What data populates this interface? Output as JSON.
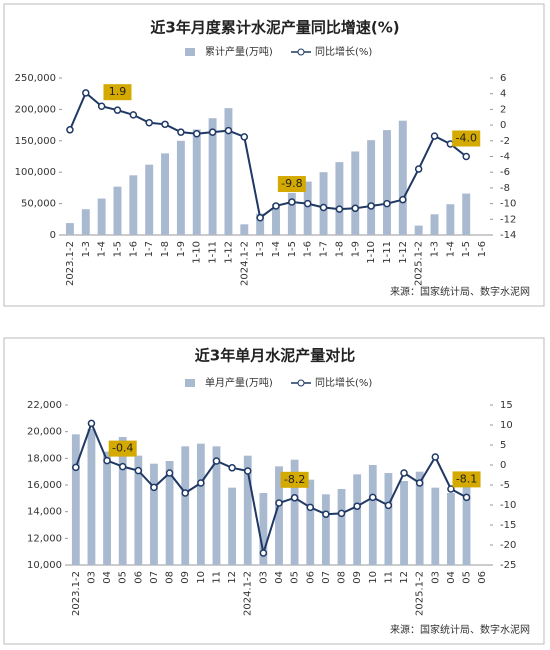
{
  "chart_data": [
    {
      "type": "combo",
      "title": "近3年月度累计水泥产量同比增速(%)",
      "source": "来源：国家统计局、数字水泥网",
      "categories": [
        "2023.1-2",
        "1-3",
        "1-4",
        "1-5",
        "1-6",
        "1-7",
        "1-8",
        "1-9",
        "1-10",
        "1-11",
        "1-12",
        "2024.1-2",
        "1-3",
        "1-4",
        "1-5",
        "1-6",
        "1-7",
        "1-8",
        "1-9",
        "1-10",
        "1-11",
        "1-12",
        "2025.1-2",
        "1-3",
        "1-4",
        "1-5",
        "1-6"
      ],
      "series": [
        {
          "name": "累计产量(万吨)",
          "type": "bar",
          "color": "#a9b9d0",
          "values": [
            19000,
            41000,
            58000,
            77000,
            95000,
            112000,
            130000,
            150000,
            168000,
            186000,
            202000,
            17000,
            34000,
            49000,
            67000,
            85000,
            100000,
            116000,
            133000,
            151000,
            167000,
            182000,
            15000,
            33000,
            49000,
            66000,
            null
          ]
        },
        {
          "name": "同比增长(%)",
          "type": "line",
          "axis": "y2",
          "color": "#1f3864",
          "values": [
            -0.6,
            4.1,
            2.4,
            1.9,
            1.3,
            0.3,
            0.1,
            -0.9,
            -1.1,
            -0.9,
            -0.7,
            -1.5,
            -11.8,
            -10.3,
            -9.8,
            -10.0,
            -10.5,
            -10.7,
            -10.6,
            -10.3,
            -10.0,
            -9.5,
            -5.6,
            -1.4,
            -2.4,
            -4.0,
            null
          ],
          "value_labels": [
            null,
            null,
            null,
            "1.9",
            null,
            null,
            null,
            null,
            null,
            null,
            null,
            null,
            null,
            null,
            "-9.8",
            null,
            null,
            null,
            null,
            null,
            null,
            null,
            null,
            null,
            null,
            "-4.0",
            null
          ]
        }
      ],
      "ylim": [
        0,
        250000
      ],
      "yticks": [
        0,
        {
          "value": 50000,
          "label": "50,000"
        },
        {
          "value": 100000,
          "label": "100,000"
        },
        {
          "value": 150000,
          "label": "150,000"
        },
        {
          "value": 200000,
          "label": "200,000"
        },
        {
          "value": 250000,
          "label": "250,000"
        }
      ],
      "y2lim": [
        -14,
        6
      ],
      "y2ticks": [
        -14,
        -12,
        -10,
        -8,
        -6,
        -4,
        -2,
        0,
        2,
        4,
        6
      ]
    },
    {
      "type": "combo",
      "title": "近3年单月水泥产量对比",
      "source": "来源：国家统计局、数字水泥网",
      "categories": [
        "2023.1-2",
        "03",
        "04",
        "05",
        "06",
        "07",
        "08",
        "09",
        "10",
        "11",
        "12",
        "2024.1-2",
        "03",
        "04",
        "05",
        "06",
        "07",
        "08",
        "09",
        "10",
        "11",
        "12",
        "2025.1-2",
        "03",
        "04",
        "05",
        "06"
      ],
      "series": [
        {
          "name": "单月产量(万吨)",
          "type": "bar",
          "color": "#a9b9d0",
          "values": [
            19800,
            20200,
            18500,
            19600,
            18200,
            17600,
            17800,
            18900,
            19100,
            18900,
            15800,
            18200,
            15400,
            17400,
            17900,
            16400,
            15300,
            15700,
            16800,
            17500,
            16900,
            16300,
            17000,
            15800,
            15400,
            16100,
            null
          ]
        },
        {
          "name": "同比增长(%)",
          "type": "line",
          "axis": "y2",
          "color": "#1f3864",
          "values": [
            -0.6,
            10.4,
            1.1,
            -0.4,
            -1.4,
            -5.6,
            -2.0,
            -7.0,
            -4.5,
            1.0,
            -0.7,
            -1.5,
            -22.0,
            -9.5,
            -8.2,
            -10.6,
            -12.3,
            -12.1,
            -10.3,
            -8.1,
            -10.1,
            -2.0,
            -4.5,
            2.0,
            -6.0,
            -8.1,
            null
          ],
          "value_labels": [
            null,
            null,
            null,
            "-0.4",
            null,
            null,
            null,
            null,
            null,
            null,
            null,
            null,
            null,
            null,
            "-8.2",
            null,
            null,
            null,
            null,
            null,
            null,
            null,
            null,
            null,
            null,
            "-8.1",
            null
          ]
        }
      ],
      "ylim": [
        10000,
        22000
      ],
      "yticks": [
        {
          "value": 10000,
          "label": "10,000"
        },
        {
          "value": 12000,
          "label": "12,000"
        },
        {
          "value": 14000,
          "label": "14,000"
        },
        {
          "value": 16000,
          "label": "16,000"
        },
        {
          "value": 18000,
          "label": "18,000"
        },
        {
          "value": 20000,
          "label": "20,000"
        },
        {
          "value": 22000,
          "label": "22,000"
        }
      ],
      "y2lim": [
        -25,
        15
      ],
      "y2ticks": [
        -25,
        -20,
        -15,
        -10,
        -5,
        0,
        5,
        10,
        15
      ]
    }
  ]
}
